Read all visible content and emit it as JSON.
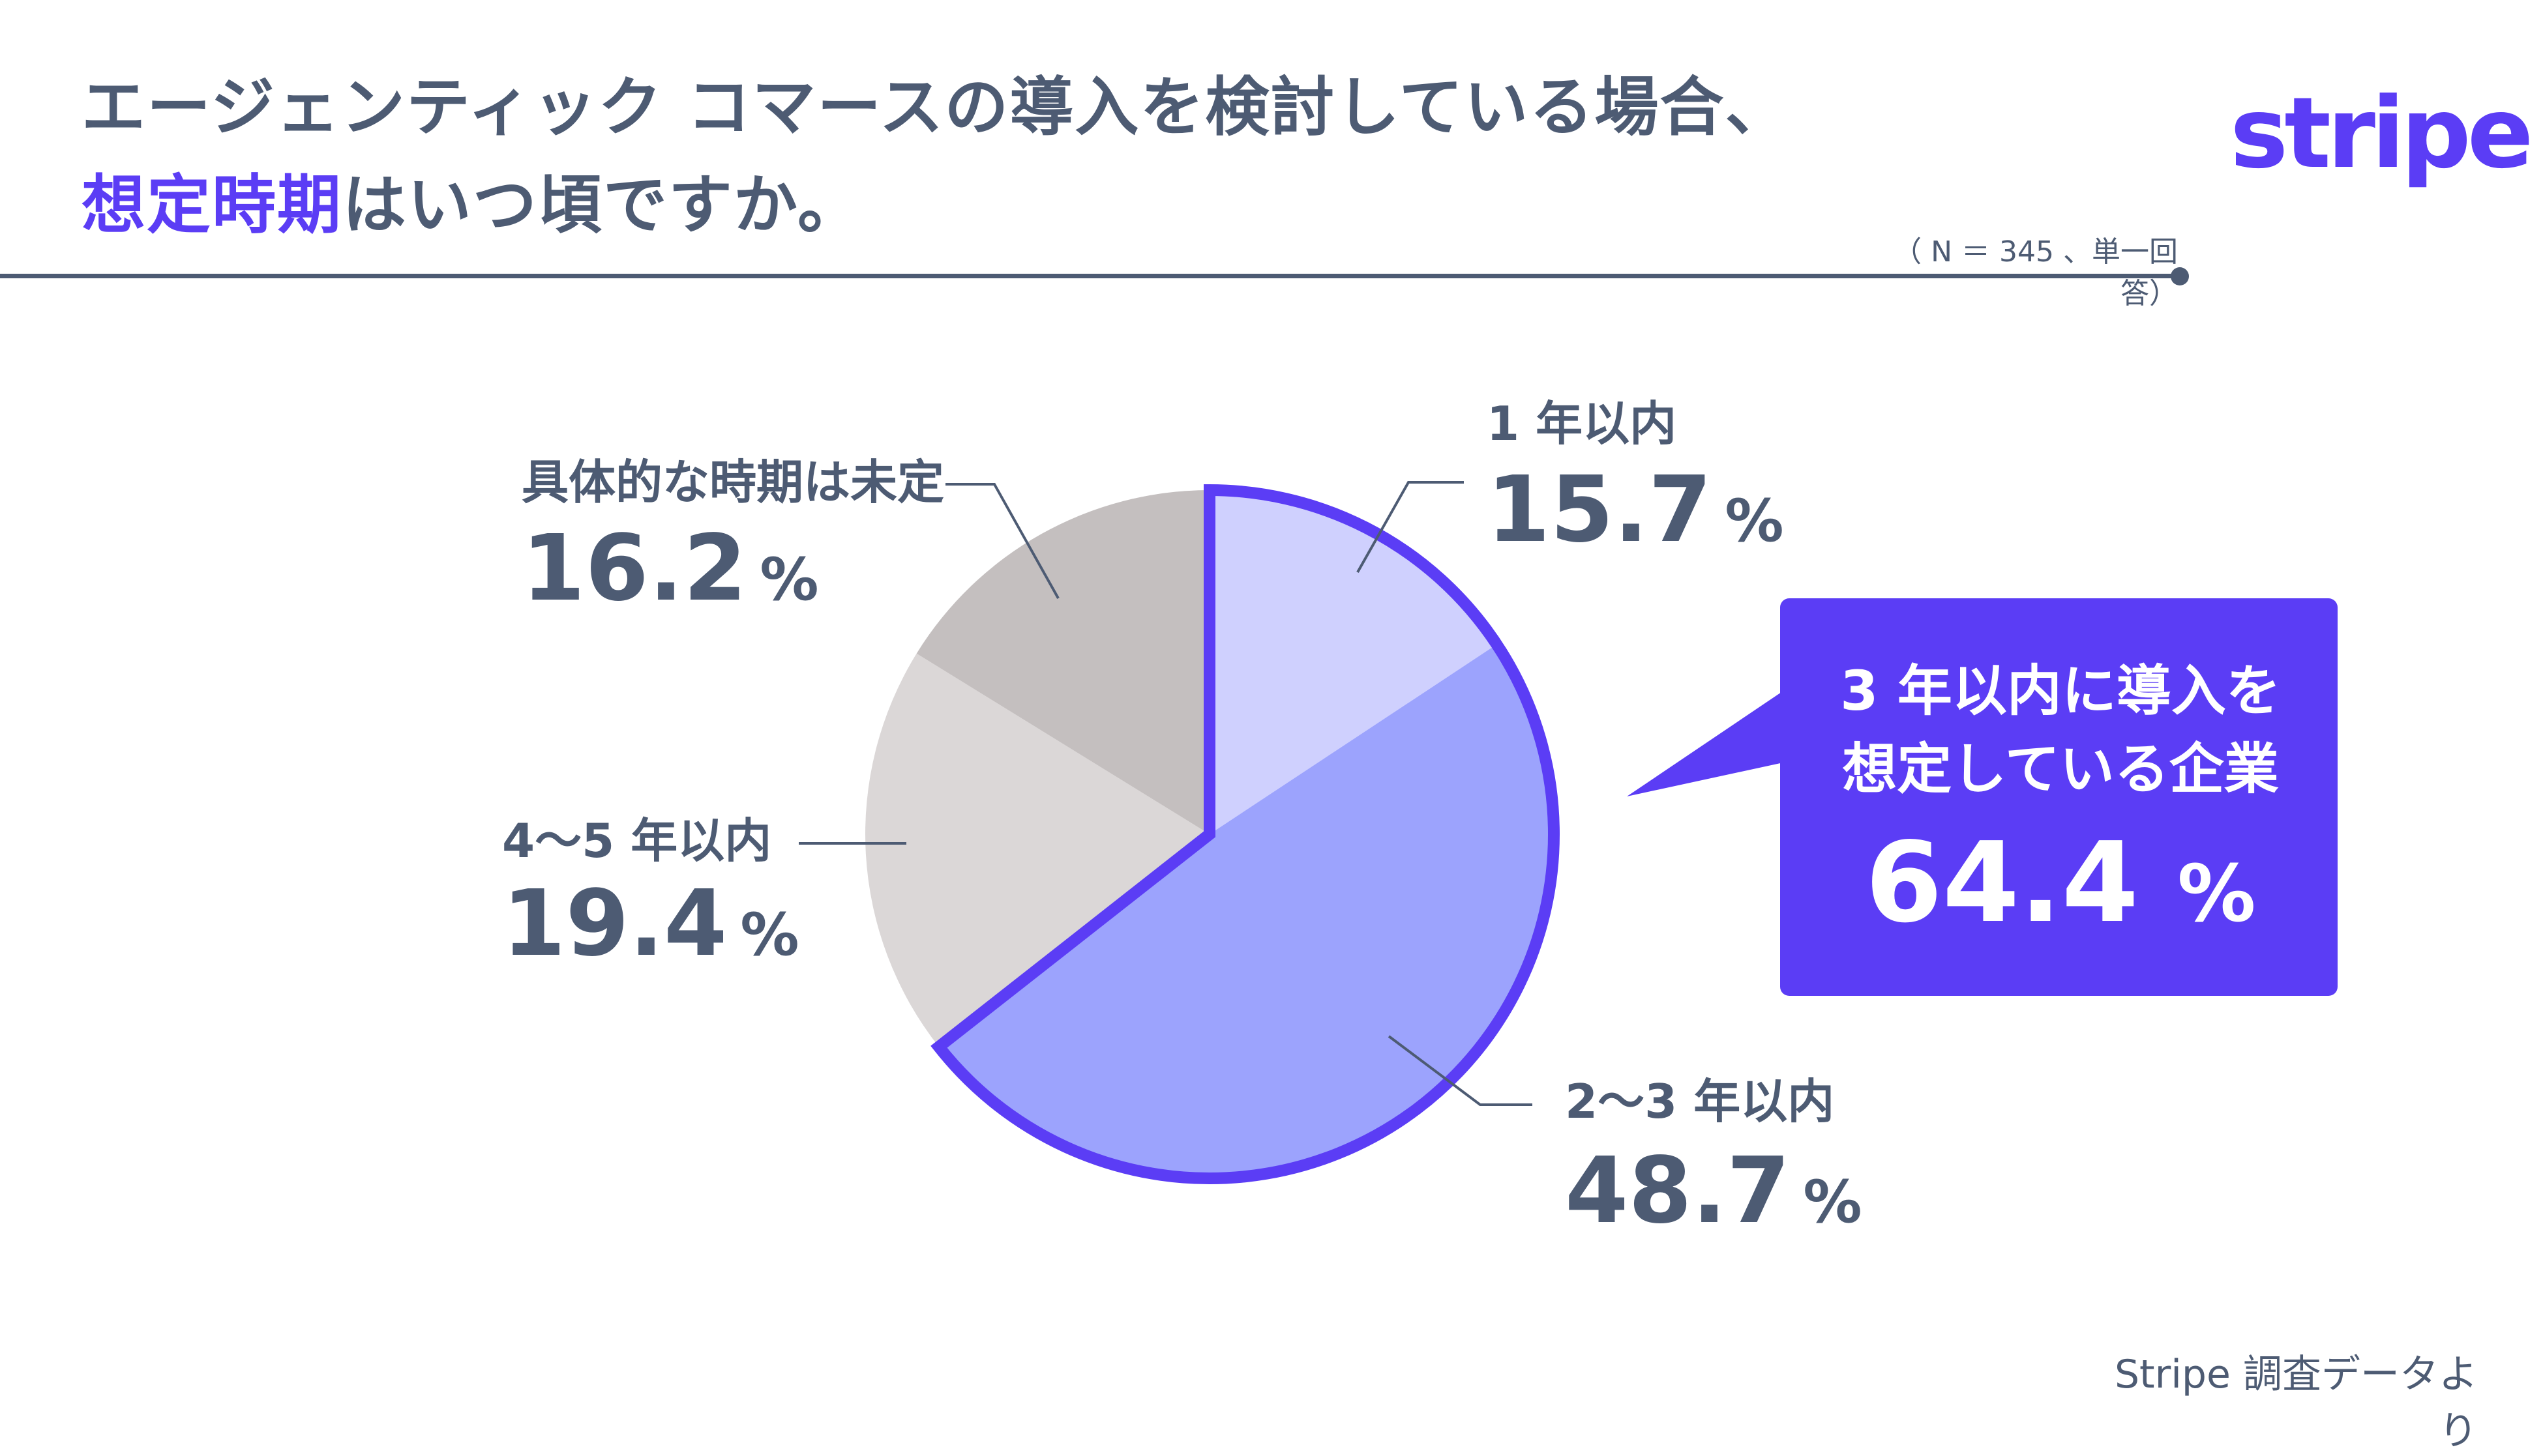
{
  "title": {
    "line1": "エージェンティック コマースの導入を検討している場合、",
    "line2_highlight": "想定時期",
    "line2_rest": "はいつ頃ですか。"
  },
  "logo": "stripe",
  "note": "（ N ＝ 345 、単一回答）",
  "chart_data": {
    "type": "pie",
    "title": "エージェンティック コマースの導入を検討している場合、想定時期はいつ頃ですか。",
    "unit": "%",
    "slices": [
      {
        "label": "1 年以内",
        "value": 15.7,
        "value_text": "15.7",
        "color": "#cfd0fe",
        "highlighted": true
      },
      {
        "label": "2〜3 年以内",
        "value": 48.7,
        "value_text": "48.7",
        "color": "#9ca3fd",
        "highlighted": true
      },
      {
        "label": "4〜5 年以内",
        "value": 19.4,
        "value_text": "19.4",
        "color": "#dbd7d7",
        "highlighted": false
      },
      {
        "label": "具体的な時期は未定",
        "value": 16.2,
        "value_text": "16.2",
        "color": "#c4bfbf",
        "highlighted": false
      }
    ],
    "highlight_color": "#5b3df5"
  },
  "callout": {
    "line1": "3 年以内に導入を",
    "line2": "想定している企業",
    "value": "64.4",
    "unit": "%",
    "color": "#5b3df5"
  },
  "source": "Stripe 調査データより"
}
